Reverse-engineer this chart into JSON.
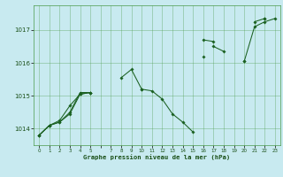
{
  "title": "Graphe pression niveau de la mer (hPa)",
  "bg_color": "#c8eaf0",
  "grid_color": "#4a9a4a",
  "line_color": "#1a6020",
  "marker_color": "#1a6020",
  "tick_color": "#1a5018",
  "ylabel_ticks": [
    1014,
    1015,
    1016,
    1017
  ],
  "xlim": [
    -0.5,
    23.5
  ],
  "ylim": [
    1013.5,
    1017.75
  ],
  "series_wavy": [
    1013.8,
    1014.1,
    1014.2,
    1014.5,
    1015.1,
    1015.1,
    null,
    null,
    1015.55,
    1015.8,
    1015.2,
    1015.15,
    1014.9,
    1014.45,
    1014.2,
    1013.9,
    null,
    1016.5,
    1016.35,
    null,
    1016.05,
    1017.1,
    1017.25,
    1017.35
  ],
  "series_straight1": [
    1013.8,
    1014.1,
    1014.2,
    1014.45,
    1015.05,
    1015.1,
    null,
    null,
    null,
    null,
    1015.2,
    null,
    null,
    null,
    null,
    null,
    1016.7,
    1016.65,
    null,
    null,
    null,
    1017.25,
    1017.35,
    null
  ],
  "series_straight2": [
    1013.8,
    1014.1,
    1014.25,
    1014.7,
    1015.05,
    1015.1,
    null,
    null,
    null,
    null,
    null,
    null,
    null,
    null,
    null,
    null,
    1016.2,
    null,
    null,
    null,
    1016.05,
    null,
    1017.35,
    null
  ],
  "x_tick_labels": [
    "0",
    "1",
    "2",
    "3",
    "4",
    "5",
    "",
    "7",
    "8",
    "9",
    "10",
    "11",
    "12",
    "13",
    "14",
    "15",
    "16",
    "17",
    "18",
    "19",
    "20",
    "21",
    "22",
    "23"
  ]
}
